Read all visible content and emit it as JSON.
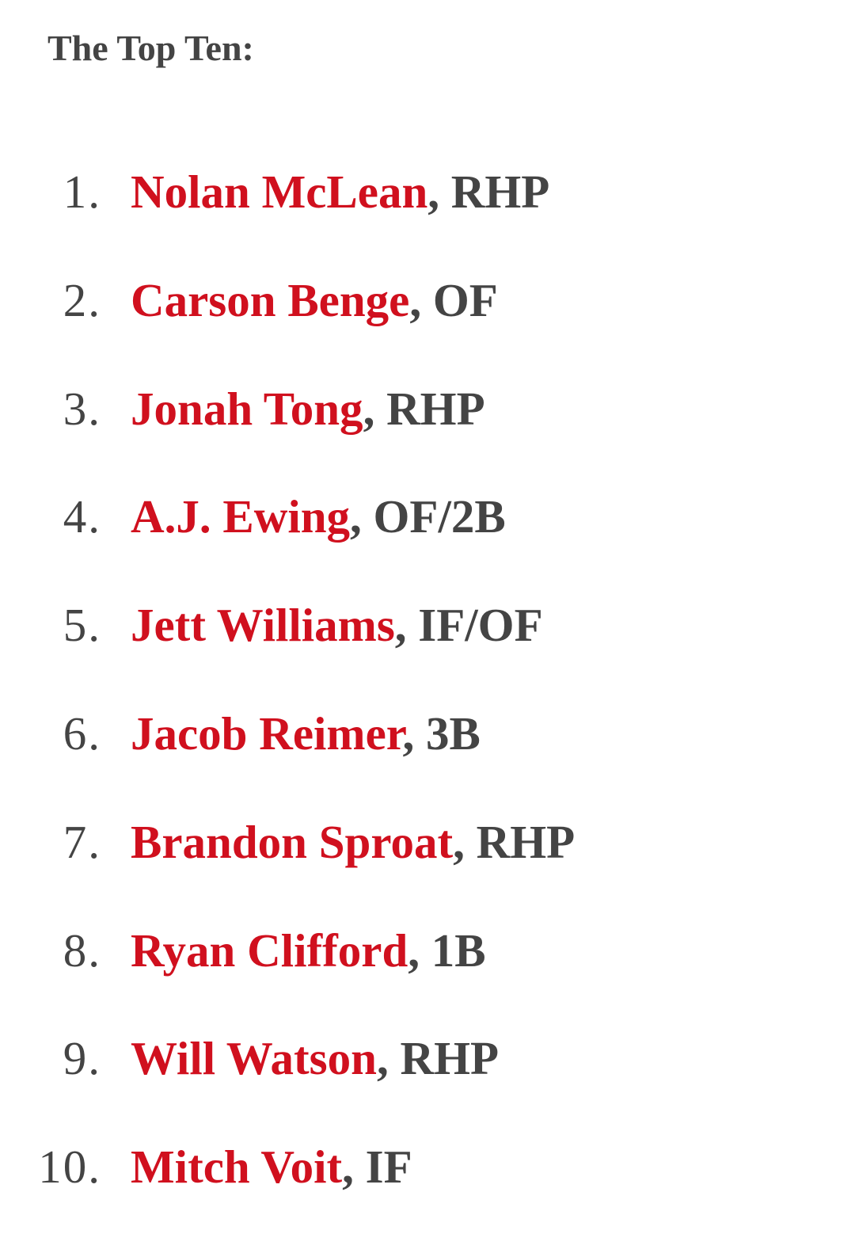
{
  "heading": "The Top Ten:",
  "colors": {
    "link": "#d0101e",
    "text": "#444444"
  },
  "items": [
    {
      "rank": "1.",
      "name": "Nolan McLean",
      "position": ", RHP"
    },
    {
      "rank": "2.",
      "name": "Carson Benge",
      "position": ", OF"
    },
    {
      "rank": "3.",
      "name": "Jonah Tong",
      "position": ", RHP"
    },
    {
      "rank": "4.",
      "name": "A.J. Ewing",
      "position": ", OF/2B"
    },
    {
      "rank": "5.",
      "name": "Jett Williams",
      "position": ", IF/OF"
    },
    {
      "rank": "6.",
      "name": "Jacob Reimer",
      "position": ", 3B"
    },
    {
      "rank": "7.",
      "name": "Brandon Sproat",
      "position": ", RHP"
    },
    {
      "rank": "8.",
      "name": "Ryan Clifford",
      "position": ", 1B"
    },
    {
      "rank": "9.",
      "name": "Will Watson",
      "position": ", RHP"
    },
    {
      "rank": "10.",
      "name": "Mitch Voit",
      "position": ", IF"
    }
  ]
}
